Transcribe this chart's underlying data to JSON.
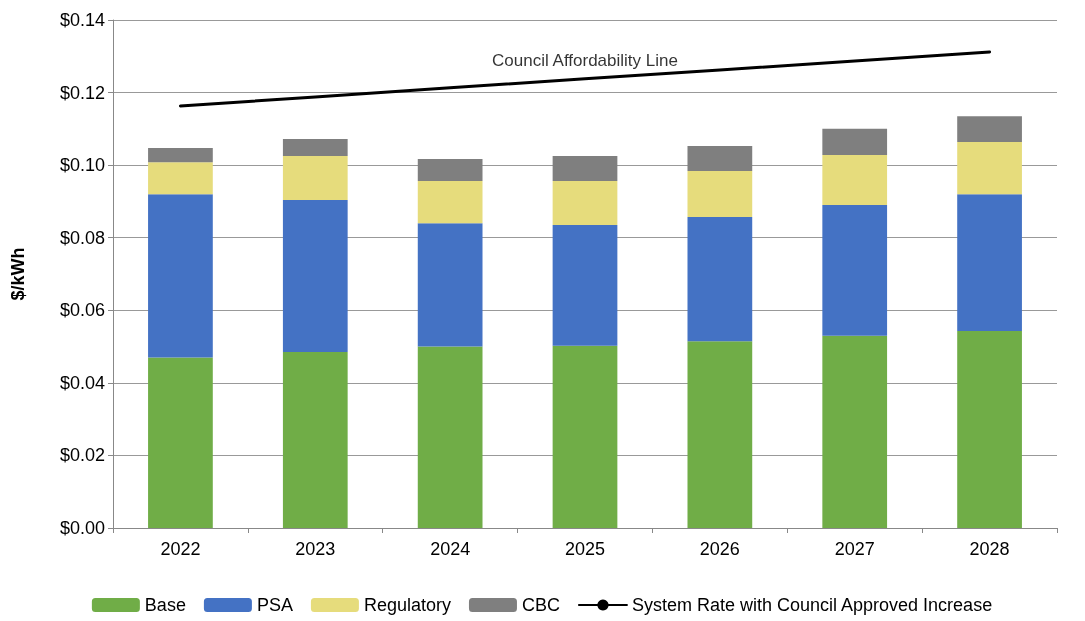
{
  "chart_data": {
    "type": "bar",
    "stacked": true,
    "ylabel": "$/kWh",
    "categories": [
      "2022",
      "2023",
      "2024",
      "2025",
      "2026",
      "2027",
      "2028"
    ],
    "series": [
      {
        "name": "Base",
        "color": "#70ad47",
        "values": [
          0.047,
          0.0485,
          0.05,
          0.0502,
          0.0515,
          0.053,
          0.0543
        ]
      },
      {
        "name": "PSA",
        "color": "#4472c4",
        "values": [
          0.045,
          0.0419,
          0.034,
          0.0333,
          0.0342,
          0.036,
          0.0377
        ]
      },
      {
        "name": "Regulatory",
        "color": "#e6dc7c",
        "values": [
          0.0088,
          0.0121,
          0.0116,
          0.0121,
          0.0127,
          0.0138,
          0.0144
        ]
      },
      {
        "name": "CBC",
        "color": "#7f7f7f",
        "values": [
          0.0039,
          0.0047,
          0.0061,
          0.0069,
          0.0069,
          0.0072,
          0.0071
        ]
      },
      {
        "name": "System Rate with Council Approved Increase",
        "type": "line",
        "color": "#000000",
        "values": [
          0.1163,
          0.1188,
          0.1213,
          0.1238,
          0.1262,
          0.1287,
          0.1312
        ]
      }
    ],
    "ylim": [
      0,
      0.14
    ],
    "yticks": [
      {
        "value": 0,
        "label": "$0.00"
      },
      {
        "value": 0.02,
        "label": "$0.02"
      },
      {
        "value": 0.04,
        "label": "$0.04"
      },
      {
        "value": 0.06,
        "label": "$0.06"
      },
      {
        "value": 0.08,
        "label": "$0.08"
      },
      {
        "value": 0.1,
        "label": "$0.10"
      },
      {
        "value": 0.12,
        "label": "$0.12"
      },
      {
        "value": 0.14,
        "label": "$0.14"
      }
    ],
    "grid": "y",
    "legend": "bottom",
    "marker": "none",
    "line_style": "solid",
    "annotations": [
      {
        "text": "Council Affordability Line",
        "x": "2025",
        "y": 0.1238
      }
    ]
  }
}
